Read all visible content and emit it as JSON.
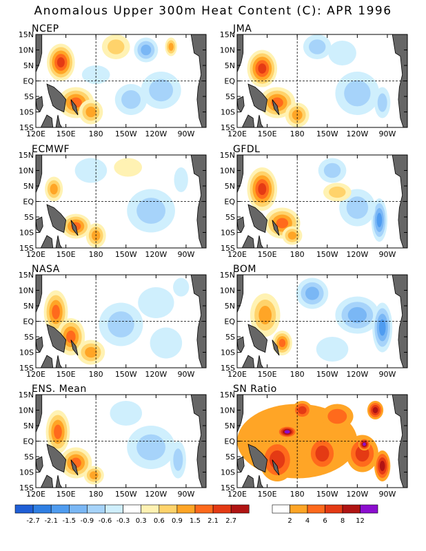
{
  "title": "Anomalous Upper 300m Heat Content (C): APR 1996",
  "chart_data": {
    "type": "heatmap",
    "lat_labels": [
      "15N",
      "10N",
      "5N",
      "EQ",
      "5S",
      "10S",
      "15S"
    ],
    "lon_labels": [
      "120E",
      "150E",
      "180",
      "150W",
      "120W",
      "90W"
    ],
    "colors": {
      "land": "#666666",
      "neg_2_7": "#1f5fd6",
      "neg_2_1": "#2f7fe3",
      "neg_1_5": "#4f9cf0",
      "neg_0_9": "#7ab7f5",
      "neg_0_6": "#a6d3fa",
      "neg_0_3": "#cfeffd",
      "pos_0_3": "#fff2b3",
      "pos_0_6": "#ffd36b",
      "pos_0_9": "#ffa526",
      "pos_1_5": "#ff6a1c",
      "pos_2_1": "#e43a14",
      "pos_2_7": "#b01413",
      "pos_max": "#8c0ecf"
    },
    "panels": [
      {
        "label": "NCEP",
        "features": [
          {
            "lon": 145,
            "lat": 6,
            "rlon": 14,
            "rlat": 6,
            "v": 2.2
          },
          {
            "lon": 160,
            "lat": -7,
            "rlon": 18,
            "rlat": 5,
            "v": 2.0
          },
          {
            "lon": 175,
            "lat": -10,
            "rlon": 12,
            "rlat": 4,
            "v": 1.2
          },
          {
            "lon": 200,
            "lat": 11,
            "rlon": 14,
            "rlat": 4,
            "v": 0.7
          },
          {
            "lon": 255,
            "lat": 11,
            "rlon": 6,
            "rlat": 3,
            "v": 1.2
          },
          {
            "lon": 230,
            "lat": 10,
            "rlon": 12,
            "rlat": 4,
            "v": -0.9
          },
          {
            "lon": 215,
            "lat": -6,
            "rlon": 16,
            "rlat": 5,
            "v": -0.6
          },
          {
            "lon": 245,
            "lat": -3,
            "rlon": 20,
            "rlat": 6,
            "v": -0.7
          },
          {
            "lon": 180,
            "lat": 2,
            "rlon": 14,
            "rlat": 3,
            "v": -0.4
          }
        ]
      },
      {
        "label": "JMA",
        "features": [
          {
            "lon": 145,
            "lat": 4,
            "rlon": 15,
            "rlat": 6,
            "v": 2.1
          },
          {
            "lon": 160,
            "lat": -7,
            "rlon": 18,
            "rlat": 5,
            "v": 1.9
          },
          {
            "lon": 180,
            "lat": -11,
            "rlon": 12,
            "rlat": 4,
            "v": 0.9
          },
          {
            "lon": 200,
            "lat": 11,
            "rlon": 14,
            "rlat": 4,
            "v": -0.8
          },
          {
            "lon": 240,
            "lat": -4,
            "rlon": 22,
            "rlat": 7,
            "v": -0.7
          },
          {
            "lon": 225,
            "lat": 9,
            "rlon": 14,
            "rlat": 4,
            "v": -0.5
          },
          {
            "lon": 265,
            "lat": -7,
            "rlon": 8,
            "rlat": 5,
            "v": -0.6
          }
        ]
      },
      {
        "label": "ECMWF",
        "features": [
          {
            "lon": 138,
            "lat": 4,
            "rlon": 9,
            "rlat": 4,
            "v": 1.3
          },
          {
            "lon": 160,
            "lat": -8,
            "rlon": 15,
            "rlat": 4,
            "v": 2.0
          },
          {
            "lon": 180,
            "lat": -11,
            "rlon": 10,
            "rlat": 4,
            "v": 1.0
          },
          {
            "lon": 175,
            "lat": 10,
            "rlon": 16,
            "rlat": 4,
            "v": -0.5
          },
          {
            "lon": 235,
            "lat": -3,
            "rlon": 24,
            "rlat": 7,
            "v": -0.7
          },
          {
            "lon": 265,
            "lat": 7,
            "rlon": 7,
            "rlat": 4,
            "v": -0.5
          },
          {
            "lon": 212,
            "lat": 11,
            "rlon": 14,
            "rlat": 3,
            "v": 0.5
          }
        ]
      },
      {
        "label": "GFDL",
        "features": [
          {
            "lon": 145,
            "lat": 4,
            "rlon": 15,
            "rlat": 7,
            "v": 2.3
          },
          {
            "lon": 165,
            "lat": -7,
            "rlon": 18,
            "rlat": 5,
            "v": 1.6
          },
          {
            "lon": 175,
            "lat": -11,
            "rlon": 10,
            "rlat": 3,
            "v": 0.9
          },
          {
            "lon": 215,
            "lat": 10,
            "rlon": 14,
            "rlat": 4,
            "v": -0.7
          },
          {
            "lon": 262,
            "lat": -6,
            "rlon": 8,
            "rlat": 7,
            "v": -1.5
          },
          {
            "lon": 240,
            "lat": -2,
            "rlon": 18,
            "rlat": 6,
            "v": -0.7
          },
          {
            "lon": 220,
            "lat": 3,
            "rlon": 14,
            "rlat": 3,
            "v": 0.6
          }
        ]
      },
      {
        "label": "NASA",
        "features": [
          {
            "lon": 140,
            "lat": 3,
            "rlon": 12,
            "rlat": 7,
            "v": 2.0
          },
          {
            "lon": 155,
            "lat": -5,
            "rlon": 14,
            "rlat": 6,
            "v": 1.9
          },
          {
            "lon": 175,
            "lat": -10,
            "rlon": 14,
            "rlat": 4,
            "v": 0.9
          },
          {
            "lon": 205,
            "lat": -1,
            "rlon": 22,
            "rlat": 7,
            "v": -0.6
          },
          {
            "lon": 240,
            "lat": 6,
            "rlon": 18,
            "rlat": 5,
            "v": -0.5
          },
          {
            "lon": 250,
            "lat": -7,
            "rlon": 16,
            "rlat": 5,
            "v": -0.5
          },
          {
            "lon": 265,
            "lat": 11,
            "rlon": 8,
            "rlat": 3,
            "v": -0.5
          }
        ]
      },
      {
        "label": "BOM",
        "features": [
          {
            "lon": 148,
            "lat": 2,
            "rlon": 15,
            "rlat": 7,
            "v": 1.3
          },
          {
            "lon": 165,
            "lat": -7,
            "rlon": 10,
            "rlat": 4,
            "v": 1.9
          },
          {
            "lon": 195,
            "lat": 9,
            "rlon": 16,
            "rlat": 5,
            "v": -0.9
          },
          {
            "lon": 240,
            "lat": 2,
            "rlon": 22,
            "rlat": 6,
            "v": -1.0
          },
          {
            "lon": 265,
            "lat": -2,
            "rlon": 10,
            "rlat": 8,
            "v": -1.6
          },
          {
            "lon": 215,
            "lat": -9,
            "rlon": 16,
            "rlat": 4,
            "v": -0.5
          }
        ]
      },
      {
        "label": "ENS. Mean",
        "features": [
          {
            "lon": 142,
            "lat": 3,
            "rlon": 12,
            "rlat": 7,
            "v": 1.9
          },
          {
            "lon": 160,
            "lat": -7,
            "rlon": 16,
            "rlat": 5,
            "v": 1.9
          },
          {
            "lon": 178,
            "lat": -11,
            "rlon": 10,
            "rlat": 3,
            "v": 1.0
          },
          {
            "lon": 210,
            "lat": 9,
            "rlon": 16,
            "rlat": 4,
            "v": -0.5
          },
          {
            "lon": 235,
            "lat": -2,
            "rlon": 24,
            "rlat": 7,
            "v": -0.6
          },
          {
            "lon": 262,
            "lat": -6,
            "rlon": 8,
            "rlat": 6,
            "v": -0.7
          }
        ]
      },
      {
        "label": "SN Ratio",
        "features": [
          {
            "lon": 180,
            "lat": 0,
            "rlon": 60,
            "rlat": 12,
            "v": 3.5
          },
          {
            "lon": 160,
            "lat": -6,
            "rlon": 18,
            "rlat": 7,
            "v": 6.5
          },
          {
            "lon": 205,
            "lat": -4,
            "rlon": 16,
            "rlat": 6,
            "v": 6.5
          },
          {
            "lon": 245,
            "lat": -4,
            "rlon": 16,
            "rlat": 6,
            "v": 7.5
          },
          {
            "lon": 265,
            "lat": -8,
            "rlon": 8,
            "rlat": 5,
            "v": 9.0
          },
          {
            "lon": 220,
            "lat": 8,
            "rlon": 16,
            "rlat": 4,
            "v": 5.5
          },
          {
            "lon": 185,
            "lat": 10,
            "rlon": 10,
            "rlat": 3,
            "v": 7.0
          },
          {
            "lon": 258,
            "lat": 10,
            "rlon": 8,
            "rlat": 3,
            "v": 8.0
          },
          {
            "lon": 170,
            "lat": 3,
            "rlon": 10,
            "rlat": 2,
            "v": 12.5
          },
          {
            "lon": 247,
            "lat": -1,
            "rlon": 6,
            "rlat": 2,
            "v": 13.0
          }
        ]
      }
    ],
    "anomaly_colorbar": {
      "labels": [
        "-2.7",
        "-2.1",
        "-1.5",
        "-0.9",
        "-0.6",
        "-0.3",
        "0.3",
        "0.6",
        "0.9",
        "1.5",
        "2.1",
        "2.7"
      ],
      "bounds": [
        -2.7,
        -2.1,
        -1.5,
        -0.9,
        -0.6,
        -0.3,
        0.3,
        0.6,
        0.9,
        1.5,
        2.1,
        2.7
      ]
    },
    "snr_colorbar": {
      "labels": [
        "2",
        "4",
        "6",
        "8",
        "12"
      ],
      "bounds": [
        2,
        4,
        6,
        8,
        12
      ],
      "colors": [
        "#ffffff",
        "#ffa526",
        "#ff6a1c",
        "#e43a14",
        "#b01413",
        "#8c0ecf"
      ]
    }
  }
}
